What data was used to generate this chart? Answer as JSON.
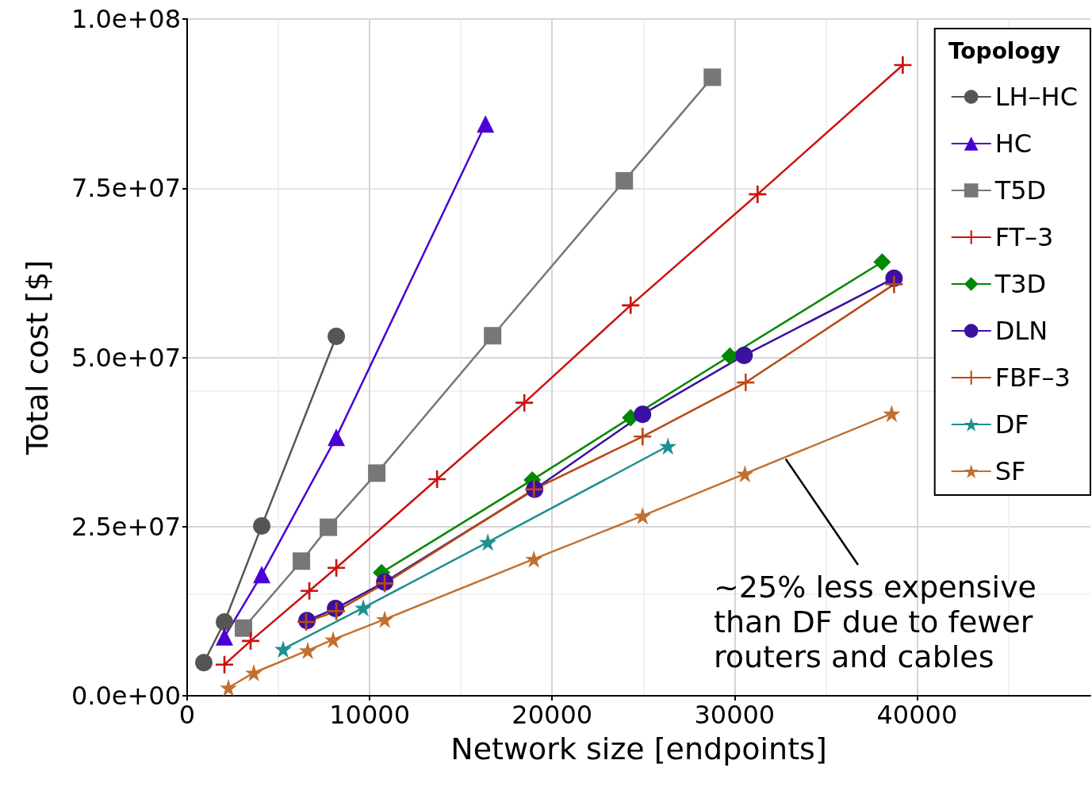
{
  "chart_data": {
    "type": "line",
    "xlabel": "Network size [endpoints]",
    "ylabel": "Total cost [$]",
    "legend_title": "Topology",
    "xlim": [
      0,
      49500
    ],
    "xticks": [
      0,
      10000,
      20000,
      30000,
      40000
    ],
    "ylim": [
      0,
      100000000
    ],
    "yticks": [
      {
        "value": 0,
        "label": "0.0e+00"
      },
      {
        "value": 25000000,
        "label": "2.5e+07"
      },
      {
        "value": 50000000,
        "label": "5.0e+07"
      },
      {
        "value": 75000000,
        "label": "7.5e+07"
      },
      {
        "value": 100000000,
        "label": "1.0e+08"
      }
    ],
    "grid": true,
    "legend": "top right",
    "line_style": "solid",
    "annotations": [
      {
        "text": "~25% less expensive\nthan DF due to fewer\nrouters and cables",
        "x": 32800,
        "y": 35000000
      }
    ],
    "series": [
      {
        "name": "LH–HC",
        "color": "#555555",
        "marker": "circle",
        "x": [
          913,
          2043,
          4087,
          8174
        ],
        "values": [
          4900000,
          10900000,
          25100000,
          53100000
        ]
      },
      {
        "name": "HC",
        "color": "#4a00d4",
        "marker": "triangle",
        "x": [
          2043,
          4087,
          8174,
          16348
        ],
        "values": [
          8700000,
          17900000,
          38200000,
          84500000
        ]
      },
      {
        "name": "T5D",
        "color": "#777777",
        "marker": "square",
        "x": [
          3087,
          6261,
          7739,
          10391,
          16739,
          23957,
          28783
        ],
        "values": [
          10000000,
          19900000,
          24900000,
          32900000,
          53200000,
          76100000,
          91400000
        ]
      },
      {
        "name": "FT–3",
        "color": "#cc1111",
        "marker": "cross",
        "x": [
          2043,
          3478,
          6696,
          8174,
          13696,
          18478,
          24304,
          31261,
          39217
        ],
        "values": [
          4600000,
          8100000,
          15500000,
          18900000,
          32000000,
          43300000,
          57700000,
          74100000,
          93200000
        ]
      },
      {
        "name": "T3D",
        "color": "#008800",
        "marker": "diamond",
        "x": [
          10652,
          18913,
          24304,
          29739,
          38087
        ],
        "values": [
          18200000,
          31900000,
          41100000,
          50200000,
          64100000
        ]
      },
      {
        "name": "DLN",
        "color": "#3c10a0",
        "marker": "circle",
        "x": [
          6565,
          8130,
          10826,
          19043,
          24957,
          30522,
          38739
        ],
        "values": [
          11100000,
          12900000,
          16800000,
          30500000,
          41600000,
          50300000,
          61700000
        ]
      },
      {
        "name": "FBF–3",
        "color": "#b84a10",
        "marker": "cross",
        "x": [
          6522,
          8174,
          10826,
          19000,
          24957,
          30609,
          38739
        ],
        "values": [
          10900000,
          12500000,
          16600000,
          30500000,
          38300000,
          46300000,
          60800000
        ]
      },
      {
        "name": "DF",
        "color": "#1f8f8f",
        "marker": "star",
        "x": [
          5261,
          9652,
          16478,
          26348
        ],
        "values": [
          6900000,
          13000000,
          22700000,
          36900000
        ]
      },
      {
        "name": "SF",
        "color": "#c07030",
        "marker": "star",
        "x": [
          2261,
          3652,
          6609,
          8000,
          10826,
          19000,
          24957,
          30565,
          38609
        ],
        "values": [
          1200000,
          3400000,
          6700000,
          8300000,
          11300000,
          20200000,
          26600000,
          32800000,
          41700000
        ]
      }
    ]
  }
}
